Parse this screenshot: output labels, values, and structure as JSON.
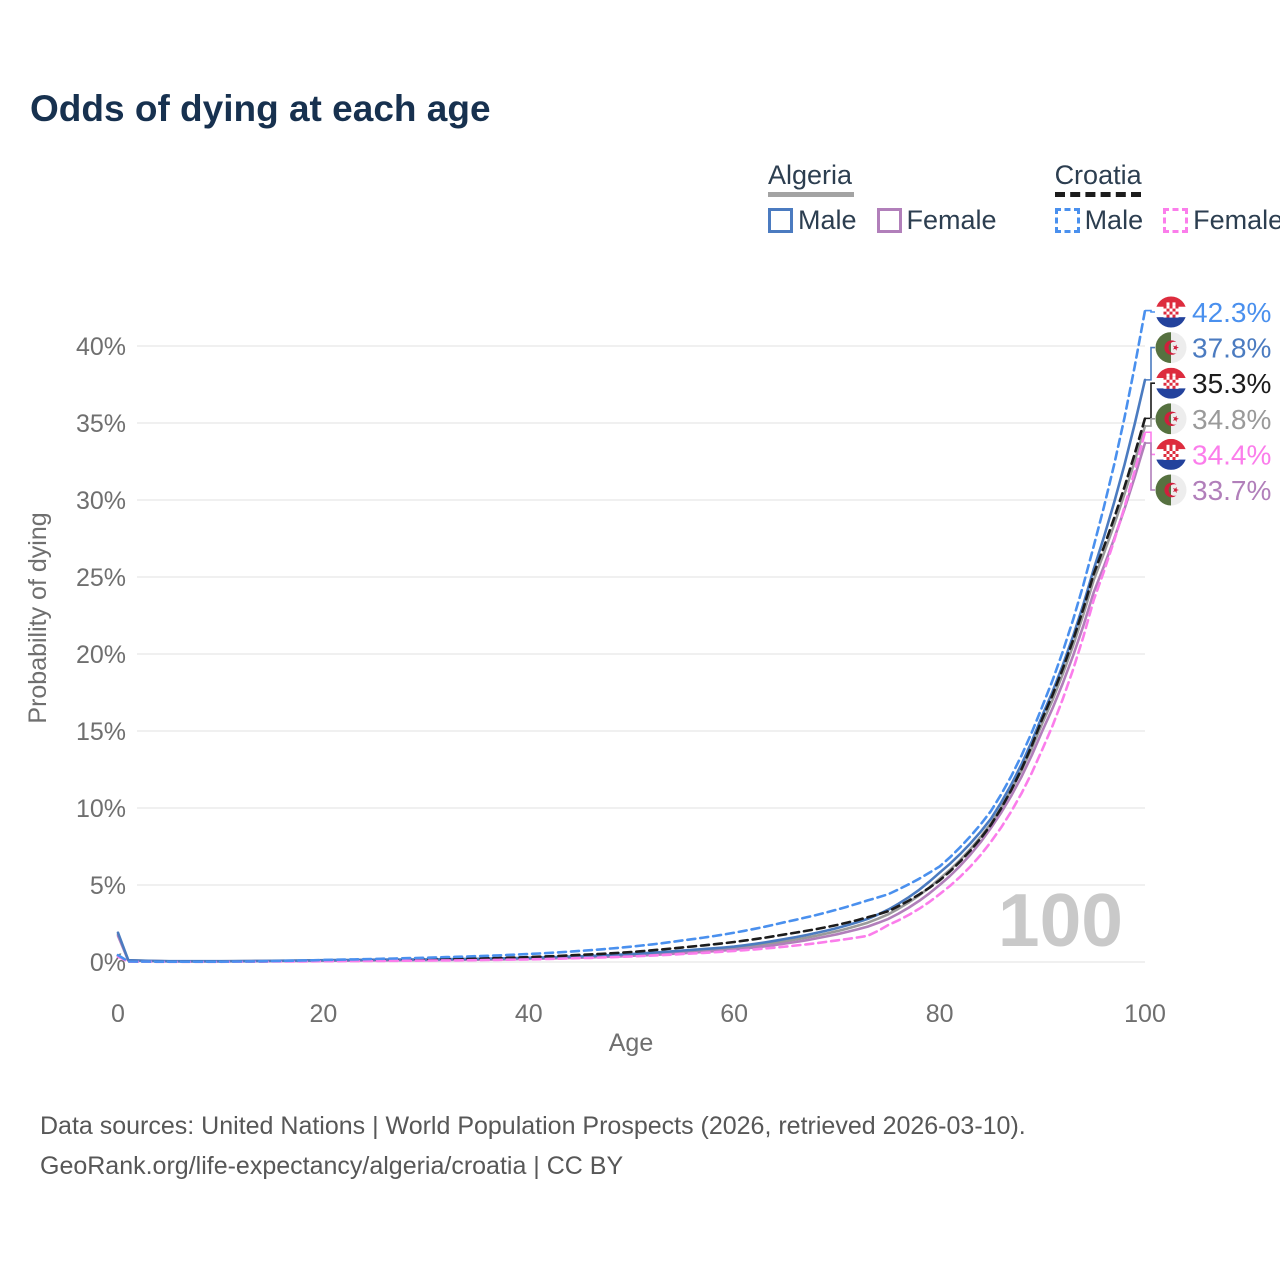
{
  "title": "Odds of dying at each age",
  "watermark_age": "100",
  "legend": {
    "groups": [
      {
        "country": "Algeria",
        "underline_color": "#a3a3a3",
        "underline_style": "solid",
        "items": [
          {
            "label": "Male",
            "color": "#4b7bc0",
            "dash": false
          },
          {
            "label": "Female",
            "color": "#b17fba",
            "dash": false
          }
        ]
      },
      {
        "country": "Croatia",
        "underline_color": "#1c1c1c",
        "underline_style": "dashed",
        "items": [
          {
            "label": "Male",
            "color": "#4a90ee",
            "dash": true
          },
          {
            "label": "Female",
            "color": "#fb7deb",
            "dash": true
          }
        ]
      }
    ]
  },
  "footer": {
    "line1": "Data sources: United Nations | World Population Prospects (2026, retrieved 2026-03-10).",
    "line2": "GeoRank.org/life-expectancy/algeria/croatia | CC BY"
  },
  "chart_data": {
    "type": "line",
    "title": "Odds of dying at each age",
    "xlabel": "Age",
    "ylabel": "Probability of dying",
    "hover_age_indicator": "100",
    "x_ticks": [
      0,
      20,
      40,
      60,
      80,
      100
    ],
    "y_ticks_pct": [
      0,
      5,
      10,
      15,
      20,
      25,
      30,
      35,
      40
    ],
    "xlim": [
      0,
      100
    ],
    "ylim_pct": [
      0,
      43.5
    ],
    "grid": true,
    "legend_position": "top-right",
    "ages": [
      0,
      1,
      5,
      10,
      15,
      20,
      25,
      30,
      35,
      40,
      45,
      50,
      55,
      60,
      65,
      70,
      73,
      75,
      80,
      85,
      90,
      95,
      100
    ],
    "series": [
      {
        "name": "Algeria (both sexes)",
        "country": "algeria",
        "sex": "both",
        "color": "#9a9a9a",
        "dash": false,
        "values_pct": [
          1.8,
          0.11,
          0.045,
          0.045,
          0.07,
          0.1,
          0.12,
          0.15,
          0.18,
          0.23,
          0.32,
          0.46,
          0.65,
          0.9,
          1.35,
          2.0,
          2.55,
          3.1,
          5.4,
          9.0,
          15.5,
          24.8,
          34.8
        ],
        "end_label": {
          "text": "34.8%",
          "color": "#9a9a9a",
          "flag": "algeria"
        }
      },
      {
        "name": "Algeria Female",
        "country": "algeria",
        "sex": "female",
        "color": "#b17fba",
        "dash": false,
        "values_pct": [
          1.7,
          0.1,
          0.04,
          0.04,
          0.06,
          0.08,
          0.1,
          0.12,
          0.15,
          0.2,
          0.28,
          0.4,
          0.57,
          0.8,
          1.2,
          1.8,
          2.3,
          2.8,
          5.0,
          8.7,
          15.0,
          24.0,
          33.7
        ],
        "end_label": {
          "text": "33.7%",
          "color": "#b17fba",
          "flag": "algeria"
        }
      },
      {
        "name": "Algeria Male",
        "country": "algeria",
        "sex": "male",
        "color": "#4b7bc0",
        "dash": false,
        "values_pct": [
          1.9,
          0.12,
          0.05,
          0.05,
          0.08,
          0.12,
          0.15,
          0.17,
          0.21,
          0.27,
          0.37,
          0.52,
          0.75,
          1.0,
          1.5,
          2.2,
          2.8,
          3.4,
          5.8,
          9.3,
          16.0,
          25.5,
          37.8
        ],
        "end_label": {
          "text": "37.8%",
          "color": "#4b7bc0",
          "flag": "algeria"
        }
      },
      {
        "name": "Croatia (both sexes)",
        "country": "croatia",
        "sex": "both",
        "color": "#1c1c1c",
        "dash": true,
        "values_pct": [
          0.4,
          0.025,
          0.018,
          0.018,
          0.05,
          0.09,
          0.13,
          0.17,
          0.23,
          0.32,
          0.46,
          0.65,
          0.95,
          1.3,
          1.8,
          2.4,
          2.9,
          3.3,
          5.3,
          8.9,
          15.8,
          25.2,
          35.3
        ],
        "end_label": {
          "text": "35.3%",
          "color": "#1c1c1c",
          "flag": "croatia"
        }
      },
      {
        "name": "Croatia Female",
        "country": "croatia",
        "sex": "female",
        "color": "#fb7deb",
        "dash": true,
        "values_pct": [
          0.35,
          0.02,
          0.015,
          0.015,
          0.03,
          0.05,
          0.07,
          0.09,
          0.12,
          0.17,
          0.25,
          0.36,
          0.52,
          0.72,
          1.0,
          1.4,
          1.7,
          2.4,
          4.4,
          7.8,
          13.8,
          23.5,
          34.4
        ],
        "end_label": {
          "text": "34.4%",
          "color": "#fb7deb",
          "flag": "croatia"
        }
      },
      {
        "name": "Croatia Male",
        "country": "croatia",
        "sex": "male",
        "color": "#4a90ee",
        "dash": true,
        "values_pct": [
          0.45,
          0.03,
          0.02,
          0.02,
          0.06,
          0.13,
          0.2,
          0.28,
          0.38,
          0.52,
          0.72,
          1.0,
          1.4,
          1.9,
          2.6,
          3.4,
          4.0,
          4.4,
          6.2,
          9.8,
          16.6,
          27.0,
          42.3
        ],
        "end_label": {
          "text": "42.3%",
          "color": "#4a90ee",
          "flag": "croatia"
        }
      }
    ],
    "flag_colors": {
      "croatia": {
        "red": "#dd2c3e",
        "white": "#ffffff",
        "blue": "#23429c"
      },
      "algeria": {
        "green": "#567140",
        "white": "#ededed",
        "red": "#cf1f3c"
      }
    }
  }
}
